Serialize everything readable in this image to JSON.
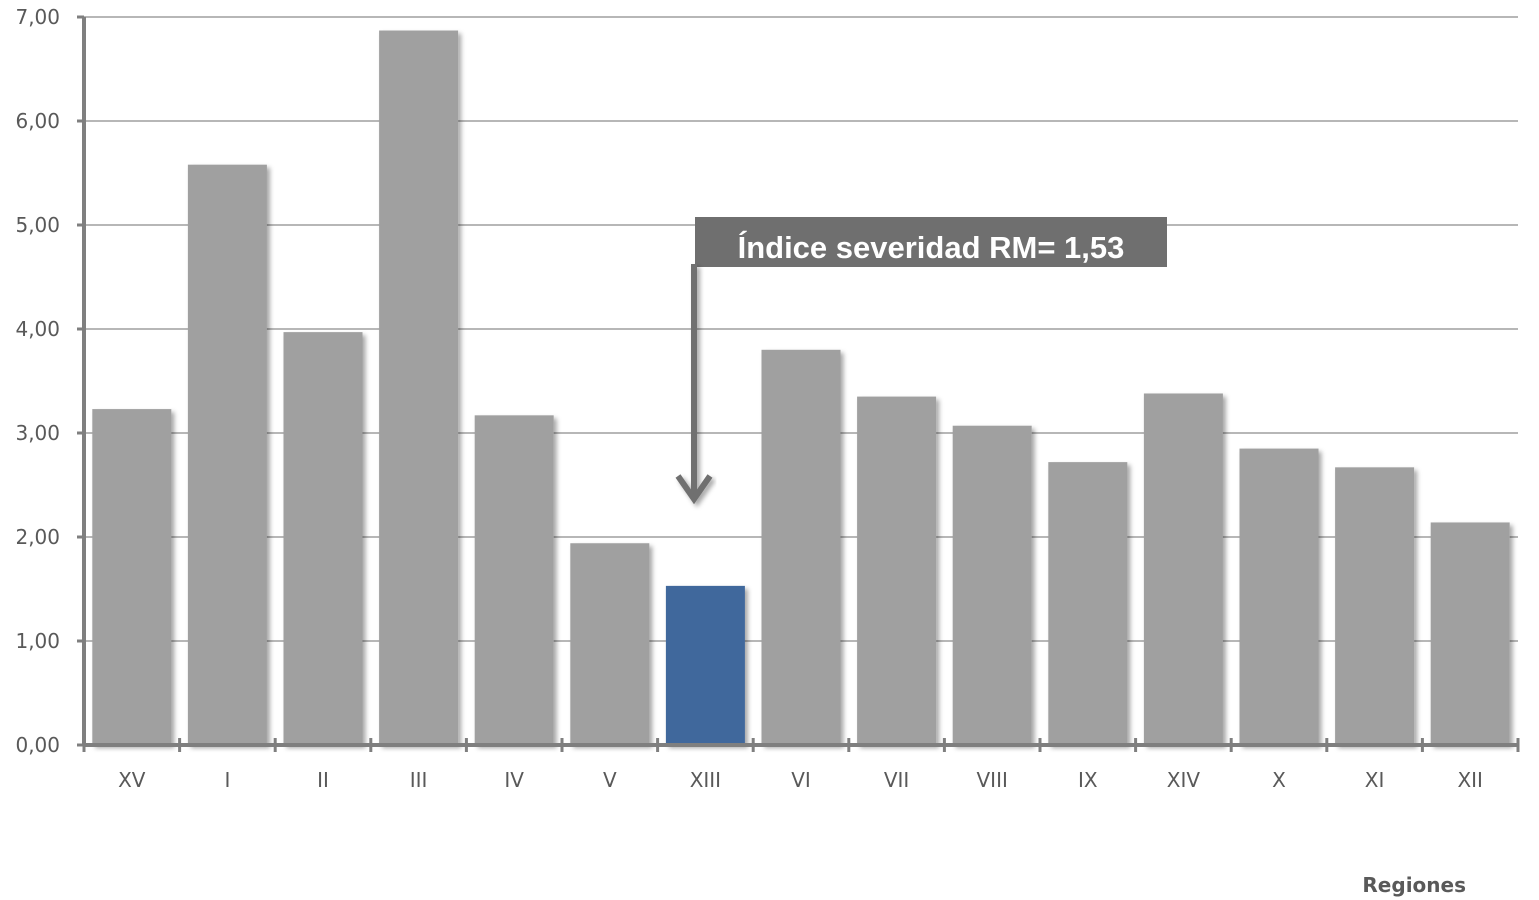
{
  "chart_data": {
    "type": "bar",
    "xlabel": "Regiones",
    "ylabel": "",
    "ylim": [
      0,
      7
    ],
    "y_ticks": [
      "0,00",
      "1,00",
      "2,00",
      "3,00",
      "4,00",
      "5,00",
      "6,00",
      "7,00"
    ],
    "grid": true,
    "categories": [
      "XV",
      "I",
      "II",
      "III",
      "IV",
      "V",
      "XIII",
      "VI",
      "VII",
      "VIII",
      "IX",
      "XIV",
      "X",
      "XI",
      "XII"
    ],
    "values": [
      3.23,
      5.58,
      3.97,
      6.87,
      3.17,
      1.94,
      1.53,
      3.8,
      3.35,
      3.07,
      2.72,
      3.38,
      2.85,
      2.67,
      2.14
    ],
    "highlighted_category": "XIII",
    "reference_line": {
      "value": 1.48
    },
    "annotation": {
      "text": "Índice severidad RM= 1,53",
      "points_to": "XIII"
    },
    "colors": {
      "bar": "#a0a0a0",
      "highlight_bar": "#41689c",
      "reference_line": "#4a7ab8",
      "annotation_box": "#6f6f6f",
      "axis": "#7f7f7f",
      "grid": "#8c8c8c"
    }
  }
}
